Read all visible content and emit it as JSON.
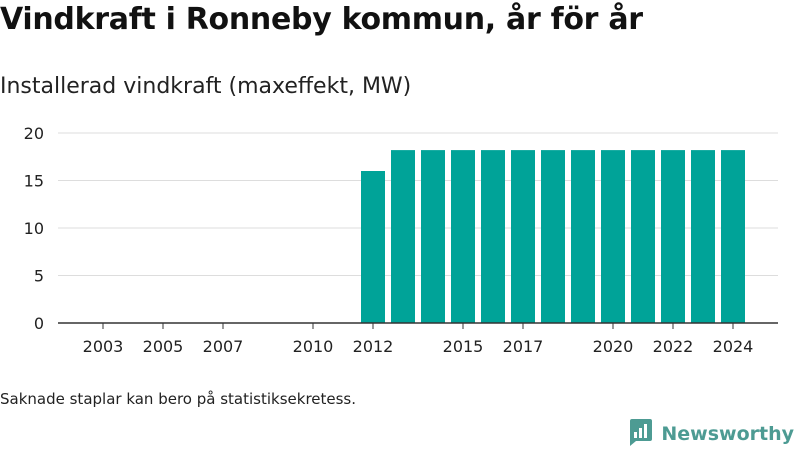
{
  "chart_data": {
    "type": "bar",
    "title": "Vindkraft i Ronneby kommun, år för år",
    "subtitle": "Installerad vindkraft (maxeffekt, MW)",
    "x": [
      2003,
      2004,
      2005,
      2006,
      2007,
      2008,
      2009,
      2010,
      2011,
      2012,
      2013,
      2014,
      2015,
      2016,
      2017,
      2018,
      2019,
      2020,
      2021,
      2022,
      2023,
      2024
    ],
    "values": [
      null,
      null,
      null,
      null,
      null,
      null,
      null,
      null,
      null,
      16,
      18.2,
      18.2,
      18.2,
      18.2,
      18.2,
      18.2,
      18.2,
      18.2,
      18.2,
      18.2,
      18.2,
      18.2
    ],
    "x_tick_labels": [
      "2003",
      "2005",
      "2007",
      "2010",
      "2012",
      "2015",
      "2017",
      "2020",
      "2022",
      "2024"
    ],
    "y_ticks": [
      0,
      5,
      10,
      15,
      20
    ],
    "ylim": [
      0,
      20
    ],
    "grid": true,
    "bar_color": "#00a398"
  },
  "footer": {
    "note": "Saknade staplar kan bero på statistiksekretess.",
    "brand": "Newsworthy",
    "brand_color": "#4d9b93"
  }
}
